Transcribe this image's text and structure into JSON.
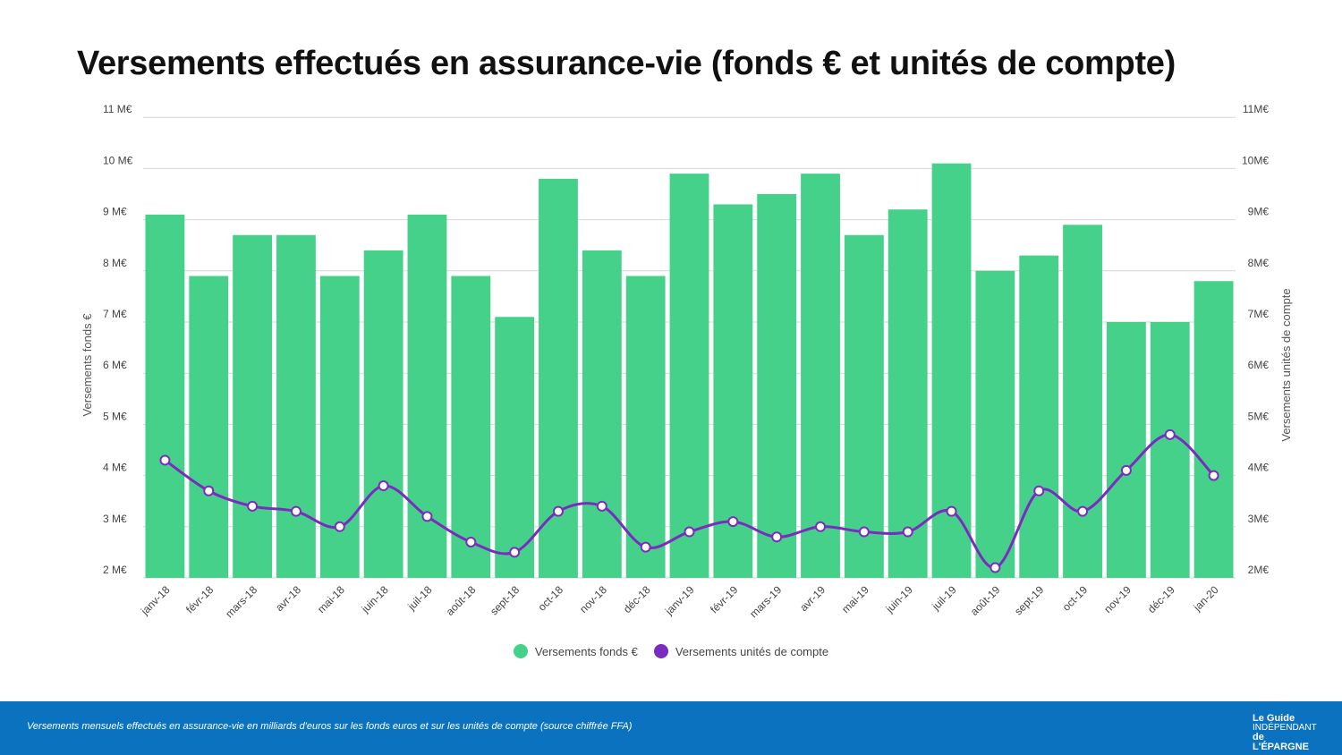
{
  "title": "Versements effectués en assurance-vie (fonds € et unités de compte)",
  "footer": {
    "caption": "Versements mensuels effectués en assurance-vie en milliards d'euros sur les fonds euros et sur les unités de compte (source chiffrée FFA)",
    "logo_text": "Le Guide INDÉPENDANT de L'ÉPARGNE"
  },
  "chart_data": {
    "type": "bar+line",
    "title": "Versements effectués en assurance-vie (fonds € et unités de compte)",
    "categories": [
      "janv-18",
      "févr-18",
      "mars-18",
      "avr-18",
      "mai-18",
      "juin-18",
      "juil-18",
      "août-18",
      "sept-18",
      "oct-18",
      "nov-18",
      "déc-18",
      "janv-19",
      "févr-19",
      "mars-19",
      "avr-19",
      "mai-19",
      "juin-19",
      "juil-19",
      "août-19",
      "sept-19",
      "oct-19",
      "nov-19",
      "déc-19",
      "jan-20"
    ],
    "series": [
      {
        "name": "Versements fonds €",
        "type": "bar",
        "axis": "left",
        "color": "#45d18a",
        "values": [
          9.1,
          7.9,
          8.7,
          8.7,
          7.9,
          8.4,
          9.1,
          7.9,
          7.1,
          9.8,
          8.4,
          7.9,
          9.9,
          9.3,
          9.5,
          9.9,
          8.7,
          9.2,
          10.1,
          8.0,
          8.3,
          8.9,
          7.0,
          7.0,
          7.8
        ]
      },
      {
        "name": "Versements unités de compte",
        "type": "line",
        "axis": "right",
        "color": "#7b2bbf",
        "values": [
          4.3,
          3.7,
          3.4,
          3.3,
          3.0,
          3.8,
          3.2,
          2.7,
          2.5,
          3.3,
          3.4,
          2.6,
          2.9,
          3.1,
          2.8,
          3.0,
          2.9,
          2.9,
          3.3,
          2.2,
          3.7,
          3.3,
          4.1,
          4.8,
          4.0
        ]
      }
    ],
    "ylabel": "Versements fonds €",
    "y2label": "Versements unités de compte",
    "ylim": [
      2,
      11
    ],
    "y2lim": [
      2,
      11
    ],
    "yticks_left": [
      "2 M€",
      "3 M€",
      "4 M€",
      "5 M€",
      "6 M€",
      "7 M€",
      "8 M€",
      "9 M€",
      "10 M€",
      "11 M€"
    ],
    "yticks_right": [
      "2M€",
      "3M€",
      "4M€",
      "5M€",
      "6M€",
      "7M€",
      "8M€",
      "9M€",
      "10M€",
      "11M€"
    ],
    "grid": true,
    "legend": "bottom"
  }
}
